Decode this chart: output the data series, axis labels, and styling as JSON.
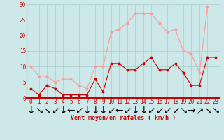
{
  "x": [
    0,
    1,
    2,
    3,
    4,
    5,
    6,
    7,
    8,
    9,
    10,
    11,
    12,
    13,
    14,
    15,
    16,
    17,
    18,
    19,
    20,
    21,
    22,
    23
  ],
  "wind_mean": [
    3,
    1,
    4,
    3,
    1,
    1,
    1,
    1,
    6,
    2,
    11,
    11,
    9,
    9,
    11,
    13,
    9,
    9,
    11,
    8,
    4,
    4,
    13,
    13
  ],
  "wind_gust": [
    10,
    7,
    7,
    5,
    6,
    6,
    4,
    3,
    10,
    10,
    21,
    22,
    24,
    27,
    27,
    27,
    24,
    21,
    22,
    15,
    14,
    8,
    29,
    null
  ],
  "wind_dirs": [
    "↓",
    "↘",
    "↘",
    "↙",
    "↓",
    "←",
    "↙",
    "↓",
    "↓",
    "↓",
    "↙",
    "←",
    "↙",
    "↓",
    "↓",
    "↙",
    "↙",
    "↙",
    "↙",
    "↘",
    "→",
    "↗",
    "↘",
    "↘"
  ],
  "bg_color": "#cce8e8",
  "grid_color": "#aacccc",
  "mean_color": "#cc0000",
  "gust_color": "#ff9999",
  "xlabel": "Vent moyen/en rafales ( km/h )",
  "ylim": [
    0,
    30
  ],
  "yticks": [
    0,
    5,
    10,
    15,
    20,
    25,
    30
  ],
  "xticks": [
    0,
    1,
    2,
    3,
    4,
    5,
    6,
    7,
    8,
    9,
    10,
    11,
    12,
    13,
    14,
    15,
    16,
    17,
    18,
    19,
    20,
    21,
    22,
    23
  ],
  "tick_fontsize": 5.5,
  "xlabel_fontsize": 6.0,
  "ylabel_fontsize": 6.0
}
